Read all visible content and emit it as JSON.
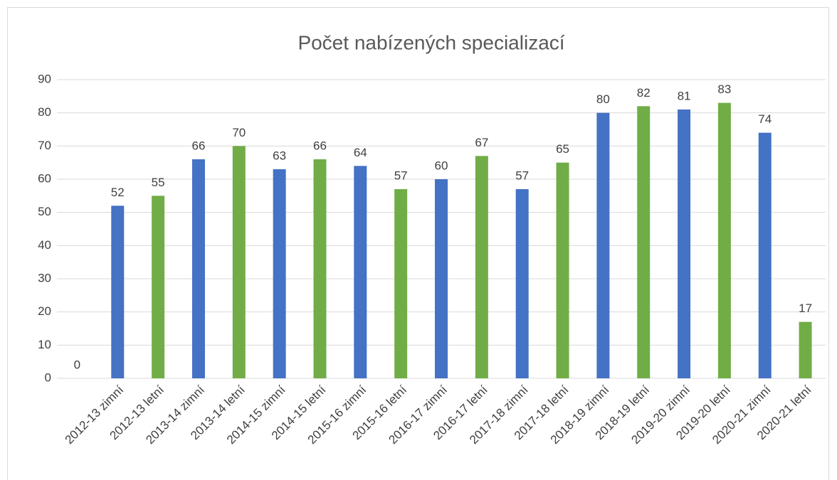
{
  "chart_data": {
    "type": "bar",
    "title": "Počet nabízených specializací",
    "categories": [
      null,
      "2012-13 zimní",
      "2012-13 letní",
      "2013-14 zimní",
      "2013-14 letní",
      "2014-15 zimní",
      "2014-15 letní",
      "2015-16 zimní",
      "2015-16 letní",
      "2016-17 zimní",
      "2016-17 letní",
      "2017-18 zimní",
      "2017-18 letní",
      "2018-19 zimní",
      "2018-19 letní",
      "2019-20 zimní",
      "2019-20 letní",
      "2020-21 zimní",
      "2020-21 letní"
    ],
    "values": [
      0,
      52,
      55,
      66,
      70,
      63,
      66,
      64,
      57,
      60,
      67,
      57,
      65,
      80,
      82,
      81,
      83,
      74,
      17
    ],
    "colors": [
      "#70ad47",
      "#4472c4",
      "#70ad47",
      "#4472c4",
      "#70ad47",
      "#4472c4",
      "#70ad47",
      "#4472c4",
      "#70ad47",
      "#4472c4",
      "#70ad47",
      "#4472c4",
      "#70ad47",
      "#4472c4",
      "#70ad47",
      "#4472c4",
      "#70ad47",
      "#4472c4",
      "#70ad47"
    ],
    "ylim": [
      0,
      90
    ],
    "yticks": [
      0,
      10,
      20,
      30,
      40,
      50,
      60,
      70,
      80,
      90
    ],
    "grid": true
  }
}
